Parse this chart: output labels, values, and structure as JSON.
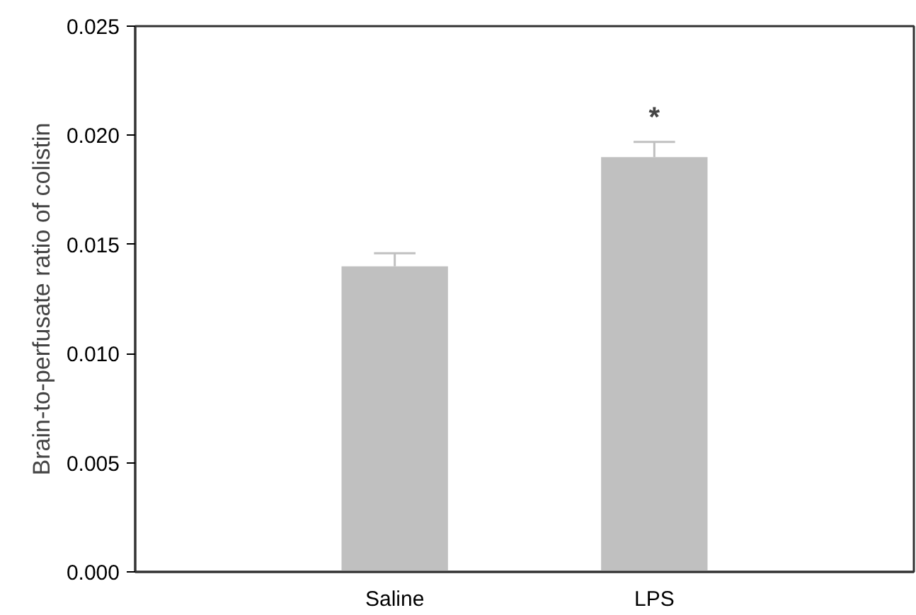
{
  "chart_data": {
    "type": "bar",
    "ylabel": "Brain-to-perfusate ratio of colistin",
    "categories": [
      "Saline",
      "LPS"
    ],
    "values": [
      0.014,
      0.019
    ],
    "errors": [
      [
        0.014,
        0.0146
      ],
      [
        0.019,
        0.0197
      ]
    ],
    "color": "#c0c0c0",
    "ylim": [
      0,
      0.025
    ],
    "yticks": [
      {
        "value": 0,
        "label": "0.000"
      },
      {
        "value": 0.005,
        "label": "0.005"
      },
      {
        "value": 0.01,
        "label": "0.010"
      },
      {
        "value": 0.015,
        "label": "0.015"
      },
      {
        "value": 0.02,
        "label": "0.020"
      },
      {
        "value": 0.025,
        "label": "0.025"
      }
    ],
    "grid": false,
    "annotations": [
      "*"
    ]
  }
}
